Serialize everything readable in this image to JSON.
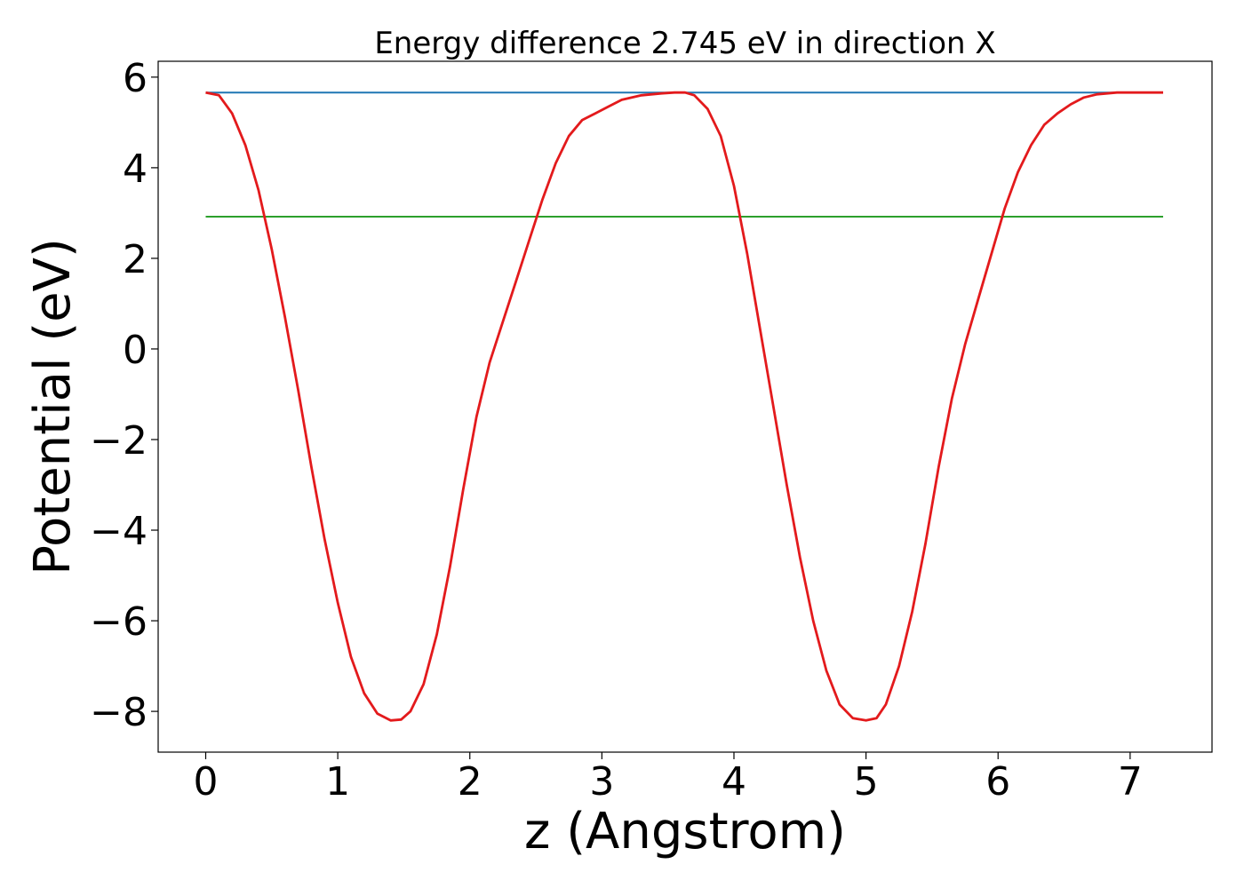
{
  "chart_data": {
    "type": "line",
    "title": "Energy difference 2.745 eV in direction X",
    "xlabel": "z (Angstrom)",
    "ylabel": "Potential (eV)",
    "xlim": [
      -0.36,
      7.62
    ],
    "ylim": [
      -8.9,
      6.35
    ],
    "xticks": [
      0,
      1,
      2,
      3,
      4,
      5,
      6,
      7
    ],
    "xtick_labels": [
      "0",
      "1",
      "2",
      "3",
      "4",
      "5",
      "6",
      "7"
    ],
    "yticks": [
      6,
      4,
      2,
      0,
      -2,
      -4,
      -6,
      -8
    ],
    "ytick_labels": [
      "6",
      "4",
      "2",
      "0",
      "−2",
      "−4",
      "−6",
      "−8"
    ],
    "grid": false,
    "series": [
      {
        "color": "#1f77b4",
        "x": [
          0,
          7.25
        ],
        "y": [
          5.66,
          5.66
        ]
      },
      {
        "color": "#2ca02c",
        "x": [
          0,
          7.25
        ],
        "y": [
          2.92,
          2.92
        ]
      },
      {
        "color": "#e31a1c",
        "x": [
          0,
          0.1,
          0.2,
          0.3,
          0.4,
          0.5,
          0.6,
          0.7,
          0.8,
          0.9,
          1.0,
          1.1,
          1.2,
          1.3,
          1.4,
          1.48,
          1.55,
          1.65,
          1.75,
          1.85,
          1.95,
          2.05,
          2.15,
          2.25,
          2.35,
          2.45,
          2.55,
          2.65,
          2.75,
          2.85,
          2.95,
          3.05,
          3.15,
          3.3,
          3.45,
          3.55,
          3.63,
          3.7,
          3.8,
          3.9,
          4.0,
          4.1,
          4.2,
          4.3,
          4.4,
          4.5,
          4.6,
          4.7,
          4.8,
          4.9,
          5.0,
          5.08,
          5.15,
          5.25,
          5.35,
          5.45,
          5.55,
          5.65,
          5.75,
          5.85,
          5.95,
          6.05,
          6.15,
          6.25,
          6.35,
          6.45,
          6.55,
          6.65,
          6.75,
          6.9,
          7.05,
          7.15,
          7.25
        ],
        "y": [
          5.66,
          5.6,
          5.2,
          4.5,
          3.5,
          2.2,
          0.7,
          -0.9,
          -2.6,
          -4.2,
          -5.6,
          -6.8,
          -7.6,
          -8.05,
          -8.2,
          -8.18,
          -8.0,
          -7.4,
          -6.3,
          -4.8,
          -3.1,
          -1.5,
          -0.3,
          0.6,
          1.5,
          2.4,
          3.3,
          4.1,
          4.7,
          5.05,
          5.2,
          5.35,
          5.5,
          5.6,
          5.64,
          5.66,
          5.66,
          5.6,
          5.3,
          4.7,
          3.6,
          2.1,
          0.4,
          -1.3,
          -3.0,
          -4.6,
          -6.0,
          -7.1,
          -7.85,
          -8.15,
          -8.2,
          -8.15,
          -7.85,
          -7.0,
          -5.8,
          -4.3,
          -2.6,
          -1.1,
          0.1,
          1.1,
          2.1,
          3.1,
          3.9,
          4.5,
          4.95,
          5.2,
          5.4,
          5.55,
          5.62,
          5.66,
          5.66,
          5.66,
          5.66
        ]
      }
    ]
  }
}
